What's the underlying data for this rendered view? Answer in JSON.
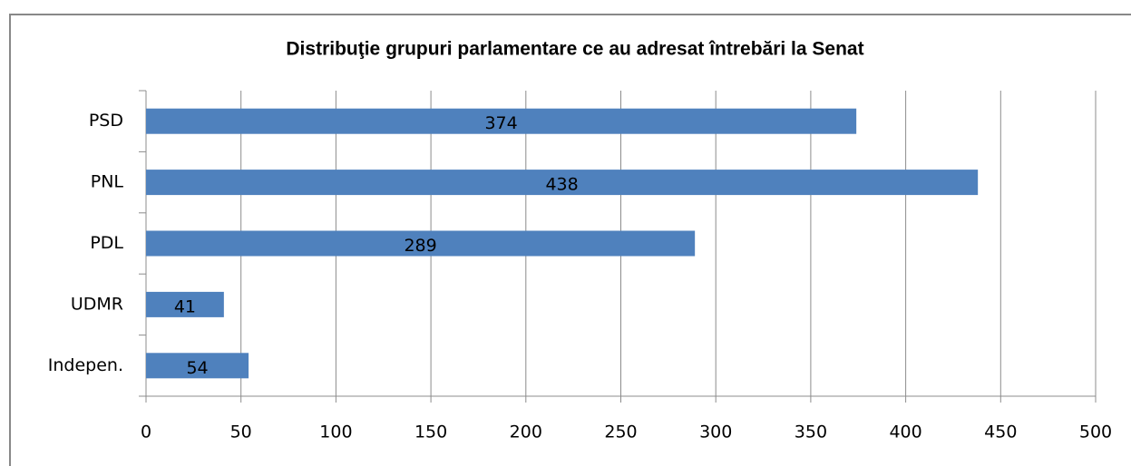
{
  "chart_data": {
    "type": "bar",
    "orientation": "horizontal",
    "title": "Distribuţie grupuri parlamentare ce au adresat întrebări la Senat",
    "categories": [
      "PSD",
      "PNL",
      "PDL",
      "UDMR",
      "Indepen."
    ],
    "values": [
      374,
      438,
      289,
      41,
      54
    ],
    "color": "#4f81bd",
    "xlim": [
      0,
      500
    ],
    "xticks": [
      0,
      50,
      100,
      150,
      200,
      250,
      300,
      350,
      400,
      450,
      500
    ],
    "grid": true
  }
}
